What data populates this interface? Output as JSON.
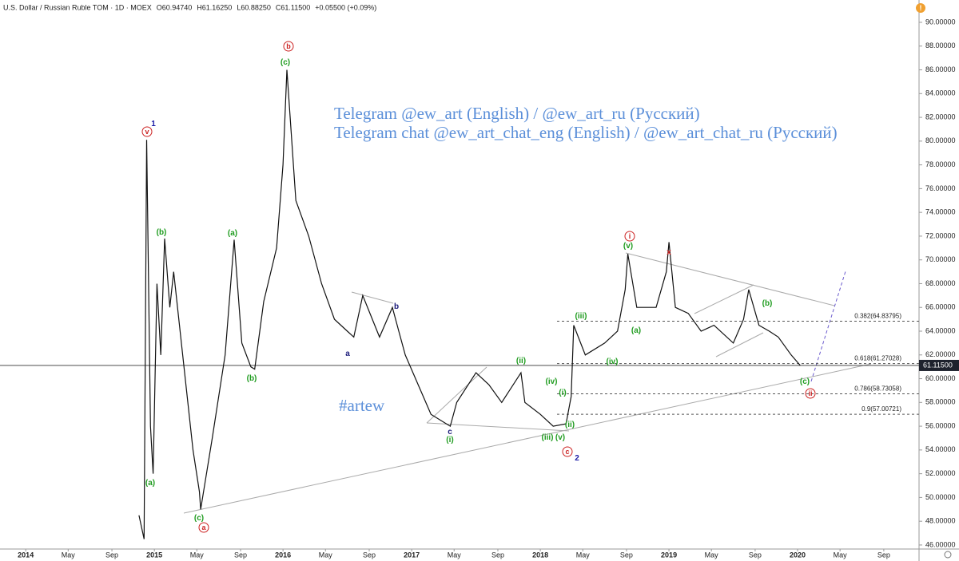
{
  "chart_data": {
    "type": "line",
    "color": "#111111",
    "header": [
      "U.S. Dollar / Russian Ruble TOM · 1D · MOEX",
      "O60.94740",
      "H61.16250",
      "L60.88250",
      "C61.11500",
      "+0.05500 (+0.09%)"
    ],
    "x": [
      2014.88,
      2014.92,
      2014.94,
      2014.97,
      2014.99,
      2015.02,
      2015.05,
      2015.08,
      2015.12,
      2015.15,
      2015.3,
      2015.35,
      2015.36,
      2015.45,
      2015.55,
      2015.62,
      2015.68,
      2015.75,
      2015.78,
      2015.85,
      2015.95,
      2016.0,
      2016.03,
      2016.1,
      2016.2,
      2016.3,
      2016.4,
      2016.5,
      2016.55,
      2016.62,
      2016.75,
      2016.85,
      2016.9,
      2016.95,
      2017.05,
      2017.15,
      2017.3,
      2017.35,
      2017.5,
      2017.6,
      2017.7,
      2017.85,
      2017.88,
      2018.0,
      2018.1,
      2018.2,
      2018.24,
      2018.26,
      2018.35,
      2018.5,
      2018.6,
      2018.66,
      2018.68,
      2018.75,
      2018.9,
      2018.98,
      2019.0,
      2019.05,
      2019.15,
      2019.25,
      2019.35,
      2019.5,
      2019.58,
      2019.62,
      2019.7,
      2019.78,
      2019.85,
      2019.95,
      2020.02
    ],
    "values": [
      48.5,
      46.5,
      80.1,
      56,
      52,
      68,
      62,
      71.8,
      66,
      69,
      54,
      50.5,
      49,
      55,
      62,
      71.7,
      63,
      61,
      60.8,
      66.5,
      71,
      78,
      86,
      75,
      72,
      68,
      65,
      64,
      63.5,
      67,
      63.5,
      66,
      64,
      62,
      59.5,
      57,
      56,
      58,
      60.5,
      59.5,
      58,
      60.5,
      58,
      57,
      56,
      56.2,
      58.5,
      64.5,
      62,
      63,
      64,
      67.5,
      70.5,
      66,
      66,
      69,
      71.5,
      66,
      65.5,
      64,
      64.5,
      63,
      65,
      67.5,
      64.5,
      64,
      63.5,
      62,
      61.115
    ],
    "xlim": [
      2013.8,
      2020.944
    ],
    "ylim": [
      45.66,
      91.88
    ],
    "xticks": [
      {
        "value": 2014,
        "label": "2014"
      },
      {
        "value": 2014.33,
        "label": "May"
      },
      {
        "value": 2014.67,
        "label": "Sep"
      },
      {
        "value": 2015,
        "label": "2015"
      },
      {
        "value": 2015.33,
        "label": "May"
      },
      {
        "value": 2015.67,
        "label": "Sep"
      },
      {
        "value": 2016,
        "label": "2016"
      },
      {
        "value": 2016.33,
        "label": "May"
      },
      {
        "value": 2016.67,
        "label": "Sep"
      },
      {
        "value": 2017,
        "label": "2017"
      },
      {
        "value": 2017.33,
        "label": "May"
      },
      {
        "value": 2017.67,
        "label": "Sep"
      },
      {
        "value": 2018,
        "label": "2018"
      },
      {
        "value": 2018.33,
        "label": "May"
      },
      {
        "value": 2018.67,
        "label": "Sep"
      },
      {
        "value": 2019,
        "label": "2019"
      },
      {
        "value": 2019.33,
        "label": "May"
      },
      {
        "value": 2019.67,
        "label": "Sep"
      },
      {
        "value": 2020,
        "label": "2020"
      },
      {
        "value": 2020.33,
        "label": "May"
      },
      {
        "value": 2020.67,
        "label": "Sep"
      }
    ],
    "yticks": [
      {
        "value": 46,
        "label": "46.00000"
      },
      {
        "value": 48,
        "label": "48.00000"
      },
      {
        "value": 50,
        "label": "50.00000"
      },
      {
        "value": 52,
        "label": "52.00000"
      },
      {
        "value": 54,
        "label": "54.00000"
      },
      {
        "value": 56,
        "label": "56.00000"
      },
      {
        "value": 58,
        "label": "58.00000"
      },
      {
        "value": 60,
        "label": "60.00000"
      },
      {
        "value": 62,
        "label": "62.00000"
      },
      {
        "value": 64,
        "label": "64.00000"
      },
      {
        "value": 66,
        "label": "66.00000"
      },
      {
        "value": 68,
        "label": "68.00000"
      },
      {
        "value": 70,
        "label": "70.00000"
      },
      {
        "value": 72,
        "label": "72.00000"
      },
      {
        "value": 74,
        "label": "74.00000"
      },
      {
        "value": 76,
        "label": "76.00000"
      },
      {
        "value": 78,
        "label": "78.00000"
      },
      {
        "value": 80,
        "label": "80.00000"
      },
      {
        "value": 82,
        "label": "82.00000"
      },
      {
        "value": 84,
        "label": "84.00000"
      },
      {
        "value": 86,
        "label": "86.00000"
      },
      {
        "value": 88,
        "label": "88.00000"
      },
      {
        "value": 90,
        "label": "90.00000"
      }
    ],
    "last_price": {
      "value": 61.115,
      "label": "61.11500"
    },
    "fib_levels": [
      {
        "value": 64.83795,
        "label": "0.382(64.83795)"
      },
      {
        "value": 61.27028,
        "label": "0.618(61.27028)"
      },
      {
        "value": 58.73058,
        "label": "0.786(58.73058)"
      },
      {
        "value": 57.00721,
        "label": "0.9(57.00721)"
      }
    ],
    "texts": [
      "Telegram @ew_art (English) / @ew_art_ru (Русский)",
      "Telegram chat @ew_art_chat_eng (English) / @ew_art_chat_ru (Русский)",
      "#artew"
    ],
    "annotations": [
      {
        "text": "1",
        "color": "#1a1aa6"
      },
      {
        "text": "v",
        "color": "#cc2222",
        "circled": true
      },
      {
        "text": "(b)",
        "color": "#1f9c1f"
      },
      {
        "text": "(a)",
        "color": "#1f9c1f"
      },
      {
        "text": "b",
        "color": "#cc2222",
        "circled": true
      },
      {
        "text": "(c)",
        "color": "#1f9c1f"
      },
      {
        "text": "(a)",
        "color": "#1f9c1f"
      },
      {
        "text": "(b)",
        "color": "#1f9c1f"
      },
      {
        "text": "(c)",
        "color": "#1f9c1f"
      },
      {
        "text": "a",
        "color": "#cc2222",
        "circled": true
      },
      {
        "text": "a",
        "color": "#1a1a7a"
      },
      {
        "text": "b",
        "color": "#1a1a7a"
      },
      {
        "text": "c",
        "color": "#1a1a7a"
      },
      {
        "text": "(i)",
        "color": "#1f9c1f"
      },
      {
        "text": "(ii)",
        "color": "#1f9c1f"
      },
      {
        "text": "(iv)",
        "color": "#1f9c1f"
      },
      {
        "text": "(i)",
        "color": "#1f9c1f"
      },
      {
        "text": "(ii)",
        "color": "#1f9c1f"
      },
      {
        "text": "(iii)",
        "color": "#1f9c1f"
      },
      {
        "text": "(v)",
        "color": "#1f9c1f"
      },
      {
        "text": "c",
        "color": "#cc2222",
        "circled": true
      },
      {
        "text": "2",
        "color": "#1a1aa6"
      },
      {
        "text": "(iii)",
        "color": "#1f9c1f"
      },
      {
        "text": "(iv)",
        "color": "#1f9c1f"
      },
      {
        "text": "(v)",
        "color": "#1f9c1f"
      },
      {
        "text": "i",
        "color": "#cc2222",
        "circled": true
      },
      {
        "text": "(a)",
        "color": "#1f9c1f"
      },
      {
        "text": "x",
        "color": "#cc2222"
      },
      {
        "text": "(b)",
        "color": "#1f9c1f"
      },
      {
        "text": "(c)",
        "color": "#1f9c1f"
      },
      {
        "text": "ii",
        "color": "#cc2222",
        "circled": true
      }
    ]
  }
}
